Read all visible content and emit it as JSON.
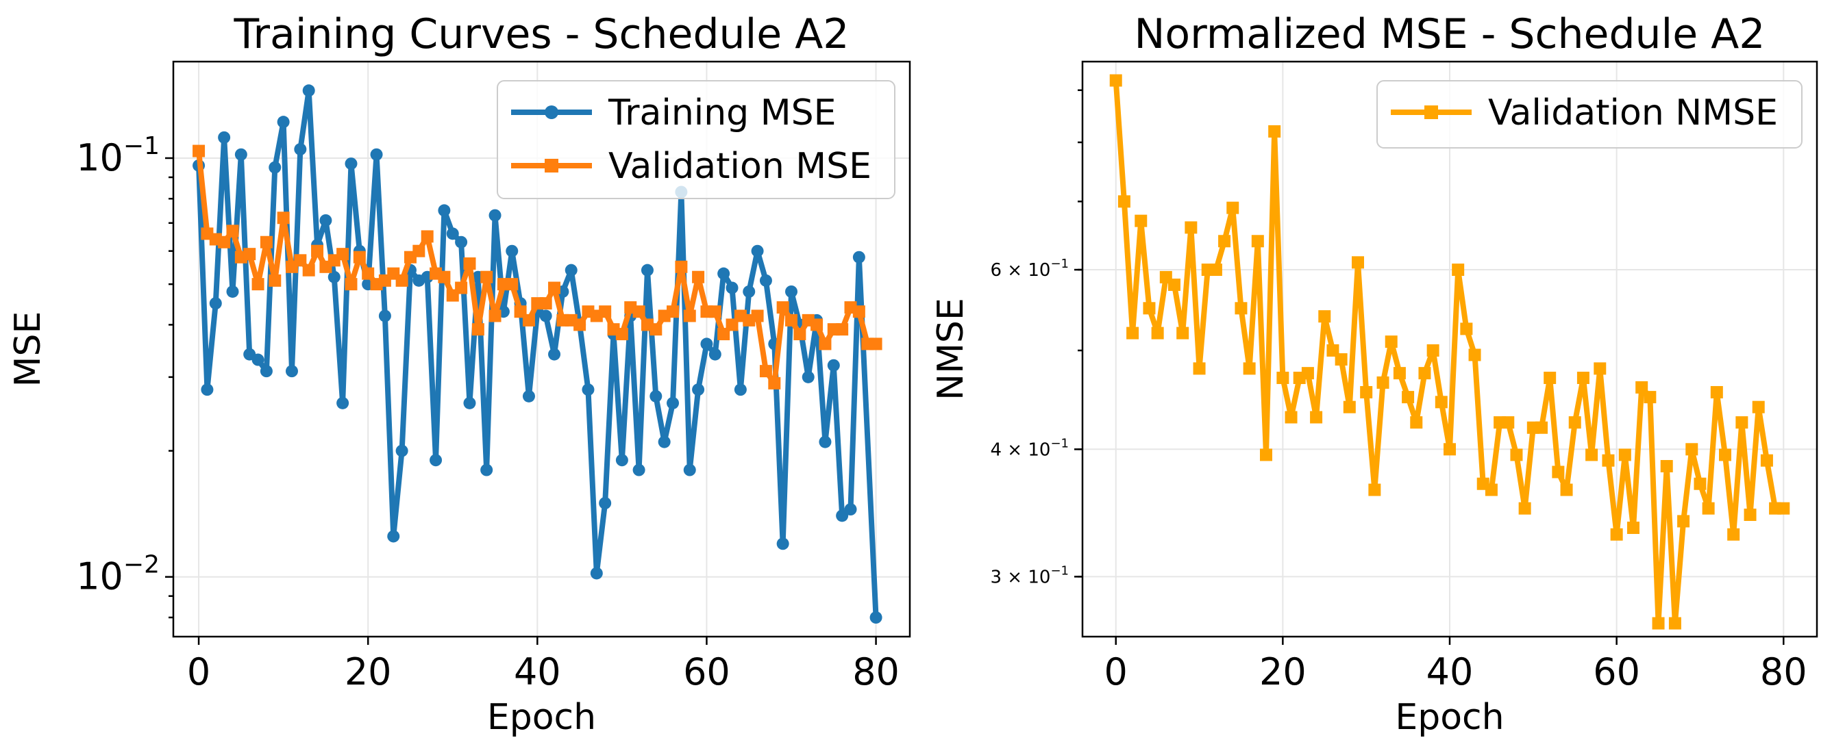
{
  "colors": {
    "training": "#1f77b4",
    "validation": "#ff7f0e",
    "nmse": "#ffa500"
  },
  "chart_data": [
    {
      "type": "line",
      "title": "Training Curves - Schedule A2",
      "xlabel": "Epoch",
      "ylabel": "MSE",
      "yscale": "log",
      "xlim": [
        -3,
        84
      ],
      "ylim": [
        0.0072,
        0.17
      ],
      "xticks": [
        0,
        20,
        40,
        60,
        80
      ],
      "xtick_labels": [
        "0",
        "20",
        "40",
        "60",
        "80"
      ],
      "yticks": [
        0.01,
        0.1
      ],
      "ytick_labels": [
        [
          "10",
          "−2"
        ],
        [
          "10",
          "−1"
        ]
      ],
      "grid": true,
      "legend": "top-right",
      "x": [
        0,
        1,
        2,
        3,
        4,
        5,
        6,
        7,
        8,
        9,
        10,
        11,
        12,
        13,
        14,
        15,
        16,
        17,
        18,
        19,
        20,
        21,
        22,
        23,
        24,
        25,
        26,
        27,
        28,
        29,
        30,
        31,
        32,
        33,
        34,
        35,
        36,
        37,
        38,
        39,
        40,
        41,
        42,
        43,
        44,
        45,
        46,
        47,
        48,
        49,
        50,
        51,
        52,
        53,
        54,
        55,
        56,
        57,
        58,
        59,
        60,
        61,
        62,
        63,
        64,
        65,
        66,
        67,
        68,
        69,
        70,
        71,
        72,
        73,
        74,
        75,
        76,
        77,
        78,
        79,
        80
      ],
      "series": [
        {
          "name": "Training MSE",
          "color": "#1f77b4",
          "marker": "circle",
          "values": [
            0.096,
            0.028,
            0.045,
            0.112,
            0.048,
            0.102,
            0.034,
            0.033,
            0.031,
            0.095,
            0.122,
            0.031,
            0.105,
            0.145,
            0.062,
            0.071,
            0.052,
            0.026,
            0.097,
            0.06,
            0.05,
            0.102,
            0.042,
            0.0125,
            0.02,
            0.054,
            0.051,
            0.052,
            0.019,
            0.075,
            0.066,
            0.063,
            0.026,
            0.052,
            0.018,
            0.073,
            0.043,
            0.06,
            0.045,
            0.027,
            0.043,
            0.042,
            0.034,
            0.048,
            0.054,
            0.04,
            0.028,
            0.0102,
            0.015,
            0.038,
            0.019,
            0.042,
            0.018,
            0.054,
            0.027,
            0.021,
            0.026,
            0.083,
            0.018,
            0.028,
            0.036,
            0.034,
            0.053,
            0.049,
            0.028,
            0.048,
            0.06,
            0.051,
            0.036,
            0.012,
            0.048,
            0.04,
            0.03,
            0.041,
            0.021,
            0.032,
            0.014,
            0.0145,
            0.058,
            0.008
          ],
          "x": [
            0,
            1,
            2,
            3,
            4,
            5,
            6,
            7,
            8,
            9,
            10,
            11,
            12,
            13,
            14,
            15,
            16,
            17,
            18,
            19,
            20,
            21,
            22,
            23,
            24,
            25,
            26,
            27,
            28,
            29,
            30,
            31,
            32,
            33,
            34,
            35,
            36,
            37,
            38,
            39,
            40,
            41,
            42,
            43,
            44,
            45,
            46,
            47,
            48,
            49,
            50,
            51,
            52,
            53,
            54,
            55,
            56,
            57,
            58,
            59,
            60,
            61,
            62,
            63,
            64,
            65,
            66,
            67,
            68,
            69,
            70,
            71,
            72,
            73,
            74,
            75,
            76,
            77,
            78,
            80
          ]
        },
        {
          "name": "Validation MSE",
          "color": "#ff7f0e",
          "marker": "square",
          "values": [
            0.104,
            0.066,
            0.064,
            0.063,
            0.067,
            0.058,
            0.059,
            0.05,
            0.063,
            0.051,
            0.072,
            0.055,
            0.057,
            0.054,
            0.06,
            0.055,
            0.057,
            0.059,
            0.05,
            0.058,
            0.053,
            0.05,
            0.051,
            0.053,
            0.051,
            0.058,
            0.06,
            0.065,
            0.053,
            0.052,
            0.047,
            0.049,
            0.056,
            0.039,
            0.052,
            0.042,
            0.05,
            0.05,
            0.043,
            0.041,
            0.045,
            0.045,
            0.049,
            0.041,
            0.041,
            0.04,
            0.043,
            0.042,
            0.043,
            0.039,
            0.038,
            0.044,
            0.043,
            0.04,
            0.039,
            0.042,
            0.043,
            0.055,
            0.042,
            0.052,
            0.043,
            0.043,
            0.038,
            0.04,
            0.042,
            0.041,
            0.042,
            0.031,
            0.029,
            0.044,
            0.041,
            0.038,
            0.041,
            0.04,
            0.036,
            0.039,
            0.039,
            0.044,
            0.043,
            0.036,
            0.036
          ]
        }
      ]
    },
    {
      "type": "line",
      "title": "Normalized MSE - Schedule A2",
      "xlabel": "Epoch",
      "ylabel": "NMSE",
      "yscale": "log",
      "xlim": [
        -4,
        84
      ],
      "ylim": [
        0.262,
        0.96
      ],
      "xticks": [
        0,
        20,
        40,
        60,
        80
      ],
      "xtick_labels": [
        "0",
        "20",
        "40",
        "60",
        "80"
      ],
      "yticks": [
        0.3,
        0.4,
        0.6
      ],
      "ytick_labels": [
        [
          "3 × 10",
          "−1"
        ],
        [
          "4 × 10",
          "−1"
        ],
        [
          "6 × 10",
          "−1"
        ]
      ],
      "grid": true,
      "legend": "top-right",
      "x": [
        0,
        1,
        2,
        3,
        4,
        5,
        6,
        7,
        8,
        9,
        10,
        11,
        12,
        13,
        14,
        15,
        16,
        17,
        18,
        19,
        20,
        21,
        22,
        23,
        24,
        25,
        26,
        27,
        28,
        29,
        30,
        31,
        32,
        33,
        34,
        35,
        36,
        37,
        38,
        39,
        40,
        41,
        42,
        43,
        44,
        45,
        46,
        47,
        48,
        49,
        50,
        51,
        52,
        53,
        54,
        55,
        56,
        57,
        58,
        59,
        60,
        61,
        62,
        63,
        64,
        65,
        66,
        67,
        68,
        69,
        70,
        71,
        72,
        73,
        74,
        75,
        76,
        77,
        78,
        79,
        80
      ],
      "series": [
        {
          "name": "Validation NMSE",
          "color": "#ffa500",
          "marker": "square",
          "values": [
            0.92,
            0.7,
            0.52,
            0.67,
            0.55,
            0.52,
            0.59,
            0.58,
            0.52,
            0.66,
            0.48,
            0.6,
            0.6,
            0.64,
            0.69,
            0.55,
            0.48,
            0.64,
            0.395,
            0.82,
            0.47,
            0.43,
            0.47,
            0.475,
            0.43,
            0.54,
            0.5,
            0.49,
            0.44,
            0.61,
            0.455,
            0.365,
            0.465,
            0.51,
            0.475,
            0.45,
            0.425,
            0.475,
            0.5,
            0.445,
            0.4,
            0.6,
            0.525,
            0.495,
            0.37,
            0.365,
            0.425,
            0.425,
            0.395,
            0.35,
            0.42,
            0.42,
            0.47,
            0.38,
            0.365,
            0.425,
            0.47,
            0.395,
            0.48,
            0.39,
            0.33,
            0.395,
            0.335,
            0.46,
            0.45,
            0.27,
            0.385,
            0.27,
            0.34,
            0.4,
            0.37,
            0.35,
            0.455,
            0.395,
            0.33,
            0.425,
            0.345,
            0.44,
            0.39,
            0.35,
            0.35
          ]
        }
      ]
    }
  ]
}
